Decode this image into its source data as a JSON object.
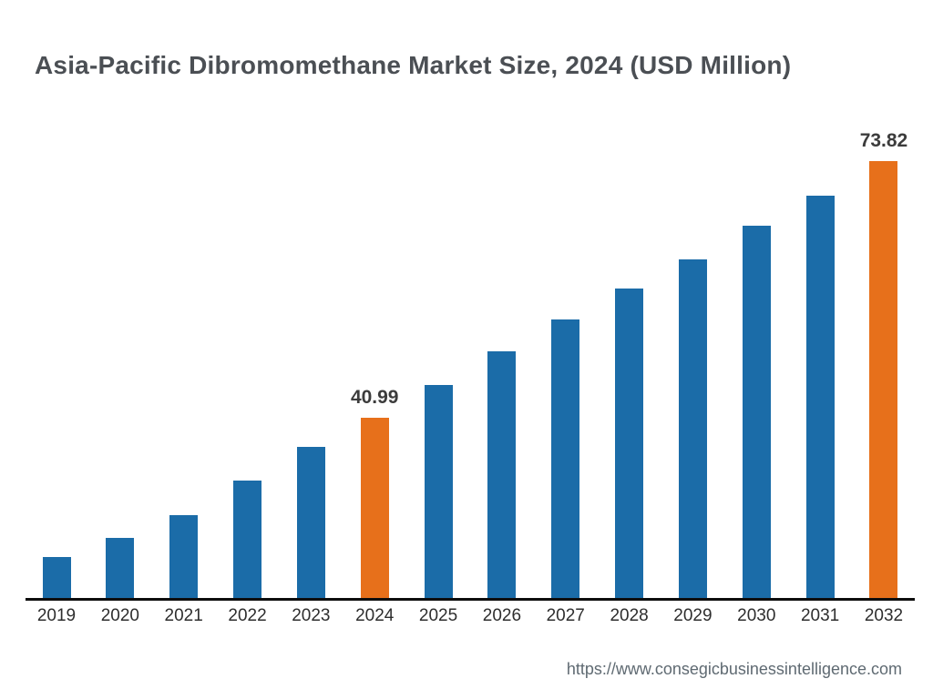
{
  "title": "Asia-Pacific Dibromomethane Market Size, 2024 (USD Million)",
  "footer": {
    "url_text": "https://www.consegicbusinessintelligence.com"
  },
  "chart_data": {
    "type": "bar",
    "title": "Asia-Pacific Dibromomethane Market Size, 2024 (USD Million)",
    "xlabel": "",
    "ylabel": "USD Million",
    "categories": [
      "2019",
      "2020",
      "2021",
      "2022",
      "2023",
      "2024",
      "2025",
      "2026",
      "2027",
      "2028",
      "2029",
      "2030",
      "2031",
      "2032"
    ],
    "values": [
      23.2,
      25.7,
      28.6,
      33.0,
      37.3,
      40.99,
      45.2,
      49.5,
      53.6,
      57.5,
      61.3,
      65.6,
      69.4,
      73.82
    ],
    "data_labels": {
      "2024": "40.99",
      "2032": "73.82"
    },
    "highlight_categories": [
      "2024",
      "2032"
    ],
    "axis_baseline_value": 18,
    "ylim": [
      18,
      80
    ],
    "gridlines": false,
    "legend": "none",
    "colors": {
      "bar": "#1b6ca8",
      "highlight": "#e7701b",
      "axis": "#0d0d0d",
      "title_text": "#4b4f54",
      "tick_text": "#2e2e2e",
      "value_label_text": "#3c3c3c",
      "footer_text": "#5f6a72"
    }
  }
}
